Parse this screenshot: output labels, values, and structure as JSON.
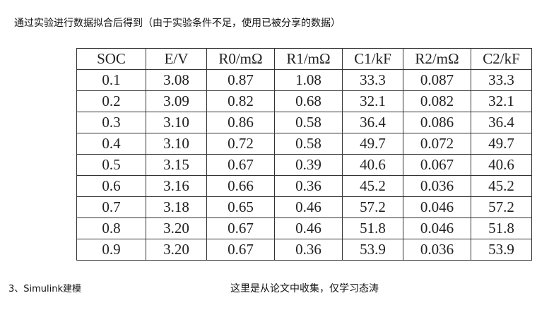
{
  "header": {
    "title": "通过实验进行数据拟合后得到（由于实验条件不足，使用已被分享的数据）"
  },
  "table": {
    "columns": [
      "SOC",
      "E/V",
      "R0/mΩ",
      "R1/mΩ",
      "C1/kF",
      "R2/mΩ",
      "C2/kF"
    ],
    "rows": [
      [
        "0.1",
        "3.08",
        "0.87",
        "1.08",
        "33.3",
        "0.087",
        "33.3"
      ],
      [
        "0.2",
        "3.09",
        "0.82",
        "0.68",
        "32.1",
        "0.082",
        "32.1"
      ],
      [
        "0.3",
        "3.10",
        "0.86",
        "0.58",
        "36.4",
        "0.086",
        "36.4"
      ],
      [
        "0.4",
        "3.10",
        "0.72",
        "0.58",
        "49.7",
        "0.072",
        "49.7"
      ],
      [
        "0.5",
        "3.15",
        "0.67",
        "0.39",
        "40.6",
        "0.067",
        "40.6"
      ],
      [
        "0.6",
        "3.16",
        "0.66",
        "0.36",
        "45.2",
        "0.036",
        "45.2"
      ],
      [
        "0.7",
        "3.18",
        "0.65",
        "0.46",
        "57.2",
        "0.046",
        "57.2"
      ],
      [
        "0.8",
        "3.20",
        "0.67",
        "0.46",
        "51.8",
        "0.046",
        "51.8"
      ],
      [
        "0.9",
        "3.20",
        "0.67",
        "0.36",
        "53.9",
        "0.036",
        "53.9"
      ]
    ]
  },
  "footer": {
    "section": "3、Simulink建模",
    "note": "这里是从论文中收集，仅学习态涛"
  }
}
